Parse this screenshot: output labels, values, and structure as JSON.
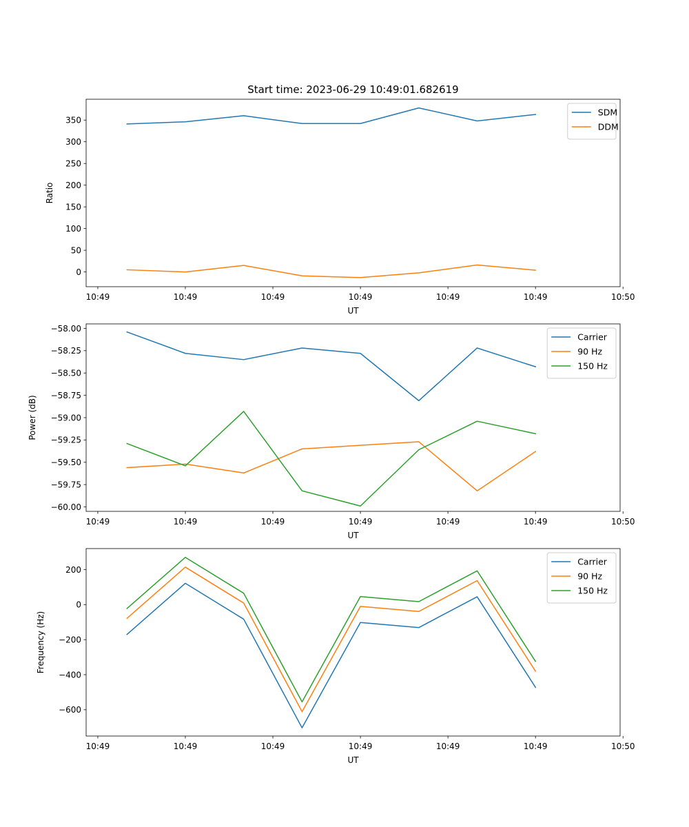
{
  "figure": {
    "title": "Start time: 2023-06-29 10:49:01.682619"
  },
  "chart_data": [
    {
      "type": "line",
      "x": [
        1,
        2,
        3,
        4,
        5,
        6,
        7,
        8
      ],
      "xlim": [
        0.3,
        9.45
      ],
      "x_ticks": [
        0.5,
        2,
        3.5,
        5,
        6.5,
        8,
        9.5
      ],
      "x_tick_labels": [
        "10:49",
        "10:49",
        "10:49",
        "10:49",
        "10:49",
        "10:49",
        "10:50"
      ],
      "xlabel": "UT",
      "ylabel": "Ratio",
      "ylim": [
        -34,
        398
      ],
      "y_ticks": [
        0,
        50,
        100,
        150,
        200,
        250,
        300,
        350
      ],
      "y_tick_labels": [
        "0",
        "50",
        "100",
        "150",
        "200",
        "250",
        "300",
        "350"
      ],
      "legend_position": "top-right",
      "series": [
        {
          "name": "SDM",
          "color": "#1f77b4",
          "values": [
            341,
            346,
            360,
            342,
            342,
            378,
            348,
            363
          ]
        },
        {
          "name": "DDM",
          "color": "#ff7f0e",
          "values": [
            5,
            0,
            15,
            -9,
            -13,
            -2,
            16,
            4
          ]
        }
      ]
    },
    {
      "type": "line",
      "x": [
        1,
        2,
        3,
        4,
        5,
        6,
        7,
        8
      ],
      "xlim": [
        0.3,
        9.45
      ],
      "x_ticks": [
        0.5,
        2,
        3.5,
        5,
        6.5,
        8,
        9.5
      ],
      "x_tick_labels": [
        "10:49",
        "10:49",
        "10:49",
        "10:49",
        "10:49",
        "10:49",
        "10:50"
      ],
      "xlabel": "UT",
      "ylabel": "Power (dB)",
      "ylim": [
        -60.05,
        -57.95
      ],
      "y_ticks": [
        -58.0,
        -58.25,
        -58.5,
        -58.75,
        -59.0,
        -59.25,
        -59.5,
        -59.75,
        -60.0
      ],
      "y_tick_labels": [
        "−58.00",
        "−58.25",
        "−58.50",
        "−58.75",
        "−59.00",
        "−59.25",
        "−59.50",
        "−59.75",
        "−60.00"
      ],
      "legend_position": "top-right",
      "series": [
        {
          "name": "Carrier",
          "color": "#1f77b4",
          "values": [
            -58.04,
            -58.28,
            -58.35,
            -58.22,
            -58.28,
            -58.81,
            -58.22,
            -58.43
          ]
        },
        {
          "name": "90 Hz",
          "color": "#ff7f0e",
          "values": [
            -59.56,
            -59.52,
            -59.62,
            -59.35,
            -59.31,
            -59.27,
            -59.82,
            -59.38
          ]
        },
        {
          "name": "150 Hz",
          "color": "#2ca02c",
          "values": [
            -59.29,
            -59.54,
            -58.93,
            -59.82,
            -59.99,
            -59.36,
            -59.04,
            -59.18
          ]
        }
      ]
    },
    {
      "type": "line",
      "x": [
        1,
        2,
        3,
        4,
        5,
        6,
        7,
        8
      ],
      "xlim": [
        0.3,
        9.45
      ],
      "x_ticks": [
        0.5,
        2,
        3.5,
        5,
        6.5,
        8,
        9.5
      ],
      "x_tick_labels": [
        "10:49",
        "10:49",
        "10:49",
        "10:49",
        "10:49",
        "10:49",
        "10:50"
      ],
      "xlabel": "UT",
      "ylabel": "Frequency (Hz)",
      "ylim": [
        -750,
        320
      ],
      "y_ticks": [
        200,
        0,
        -200,
        -400,
        -600
      ],
      "y_tick_labels": [
        "200",
        "0",
        "−200",
        "−400",
        "−600"
      ],
      "legend_position": "top-right",
      "series": [
        {
          "name": "Carrier",
          "color": "#1f77b4",
          "values": [
            -170,
            122,
            -83,
            -703,
            -102,
            -131,
            45,
            -472
          ]
        },
        {
          "name": "90 Hz",
          "color": "#ff7f0e",
          "values": [
            -78,
            214,
            9,
            -611,
            -10,
            -39,
            137,
            -380
          ]
        },
        {
          "name": "150 Hz",
          "color": "#2ca02c",
          "values": [
            -22,
            270,
            65,
            -555,
            46,
            17,
            193,
            -324
          ]
        }
      ]
    }
  ]
}
